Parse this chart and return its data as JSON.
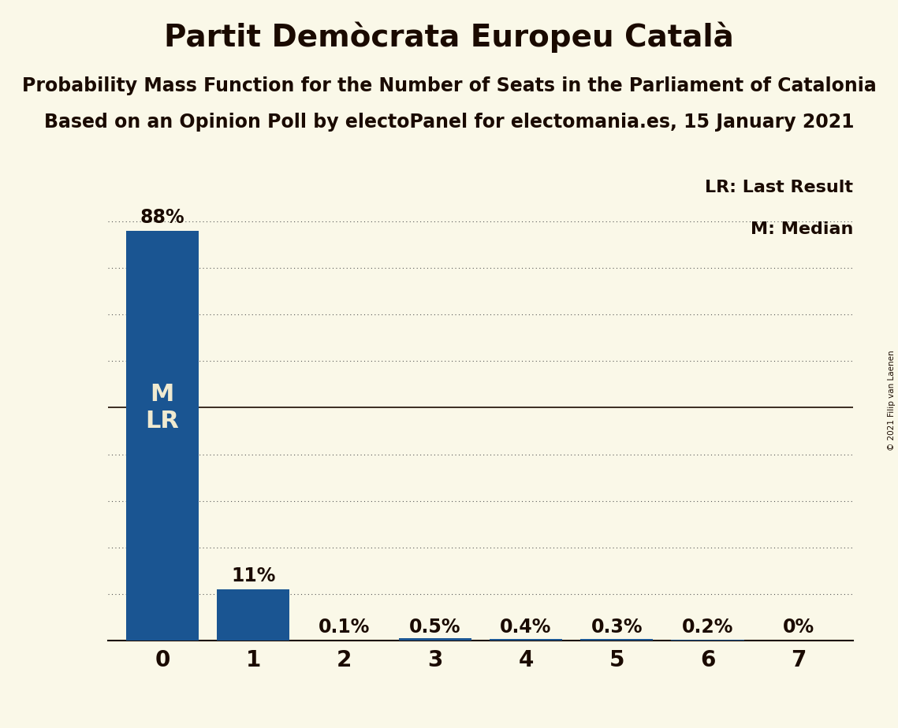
{
  "title": "Partit Demòcrata Europeu Català",
  "subtitle1": "Probability Mass Function for the Number of Seats in the Parliament of Catalonia",
  "subtitle2": "Based on an Opinion Poll by electoPanel for electomania.es, 15 January 2021",
  "copyright": "© 2021 Filip van Laenen",
  "categories": [
    0,
    1,
    2,
    3,
    4,
    5,
    6,
    7
  ],
  "values": [
    0.88,
    0.11,
    0.001,
    0.005,
    0.004,
    0.003,
    0.002,
    0.0
  ],
  "bar_color": "#1a5592",
  "background_color": "#faf8e8",
  "text_color": "#1a0a00",
  "bar_labels": [
    "88%",
    "11%",
    "0.1%",
    "0.5%",
    "0.4%",
    "0.3%",
    "0.2%",
    "0%"
  ],
  "ylim": [
    0,
    1.0
  ],
  "legend_lr": "LR: Last Result",
  "legend_m": "M: Median",
  "dotted_gridline_color": "#555555",
  "solid_gridline_color": "#1a0a00",
  "title_fontsize": 28,
  "subtitle_fontsize": 17,
  "bar_label_fontsize": 17,
  "axis_label_fontsize": 20,
  "legend_fontsize": 16,
  "ml_fontsize": 22
}
